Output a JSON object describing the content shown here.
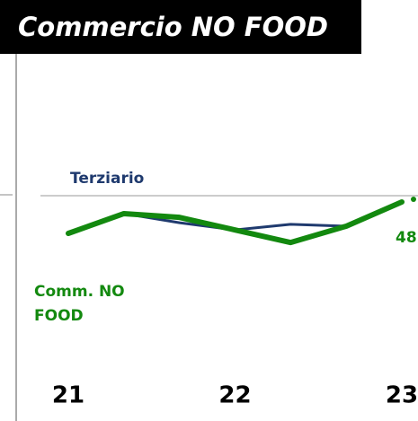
{
  "chart_data": {
    "type": "line",
    "title": "Commercio NO FOOD",
    "categories": [
      "21",
      null,
      null,
      "22",
      null,
      null,
      "23"
    ],
    "series": [
      {
        "name": "Terziario",
        "color": "#1f3a6e",
        "values": [
          null,
          44.3,
          41.4,
          39.1,
          40.9,
          40.3,
          48
        ]
      },
      {
        "name": "Comm. NO FOOD",
        "color": "#13890f",
        "values": [
          38,
          44.3,
          43.1,
          39.1,
          35.1,
          40.3,
          48
        ]
      }
    ],
    "ylim": [
      0,
      100
    ],
    "reference_line": 50
  }
}
